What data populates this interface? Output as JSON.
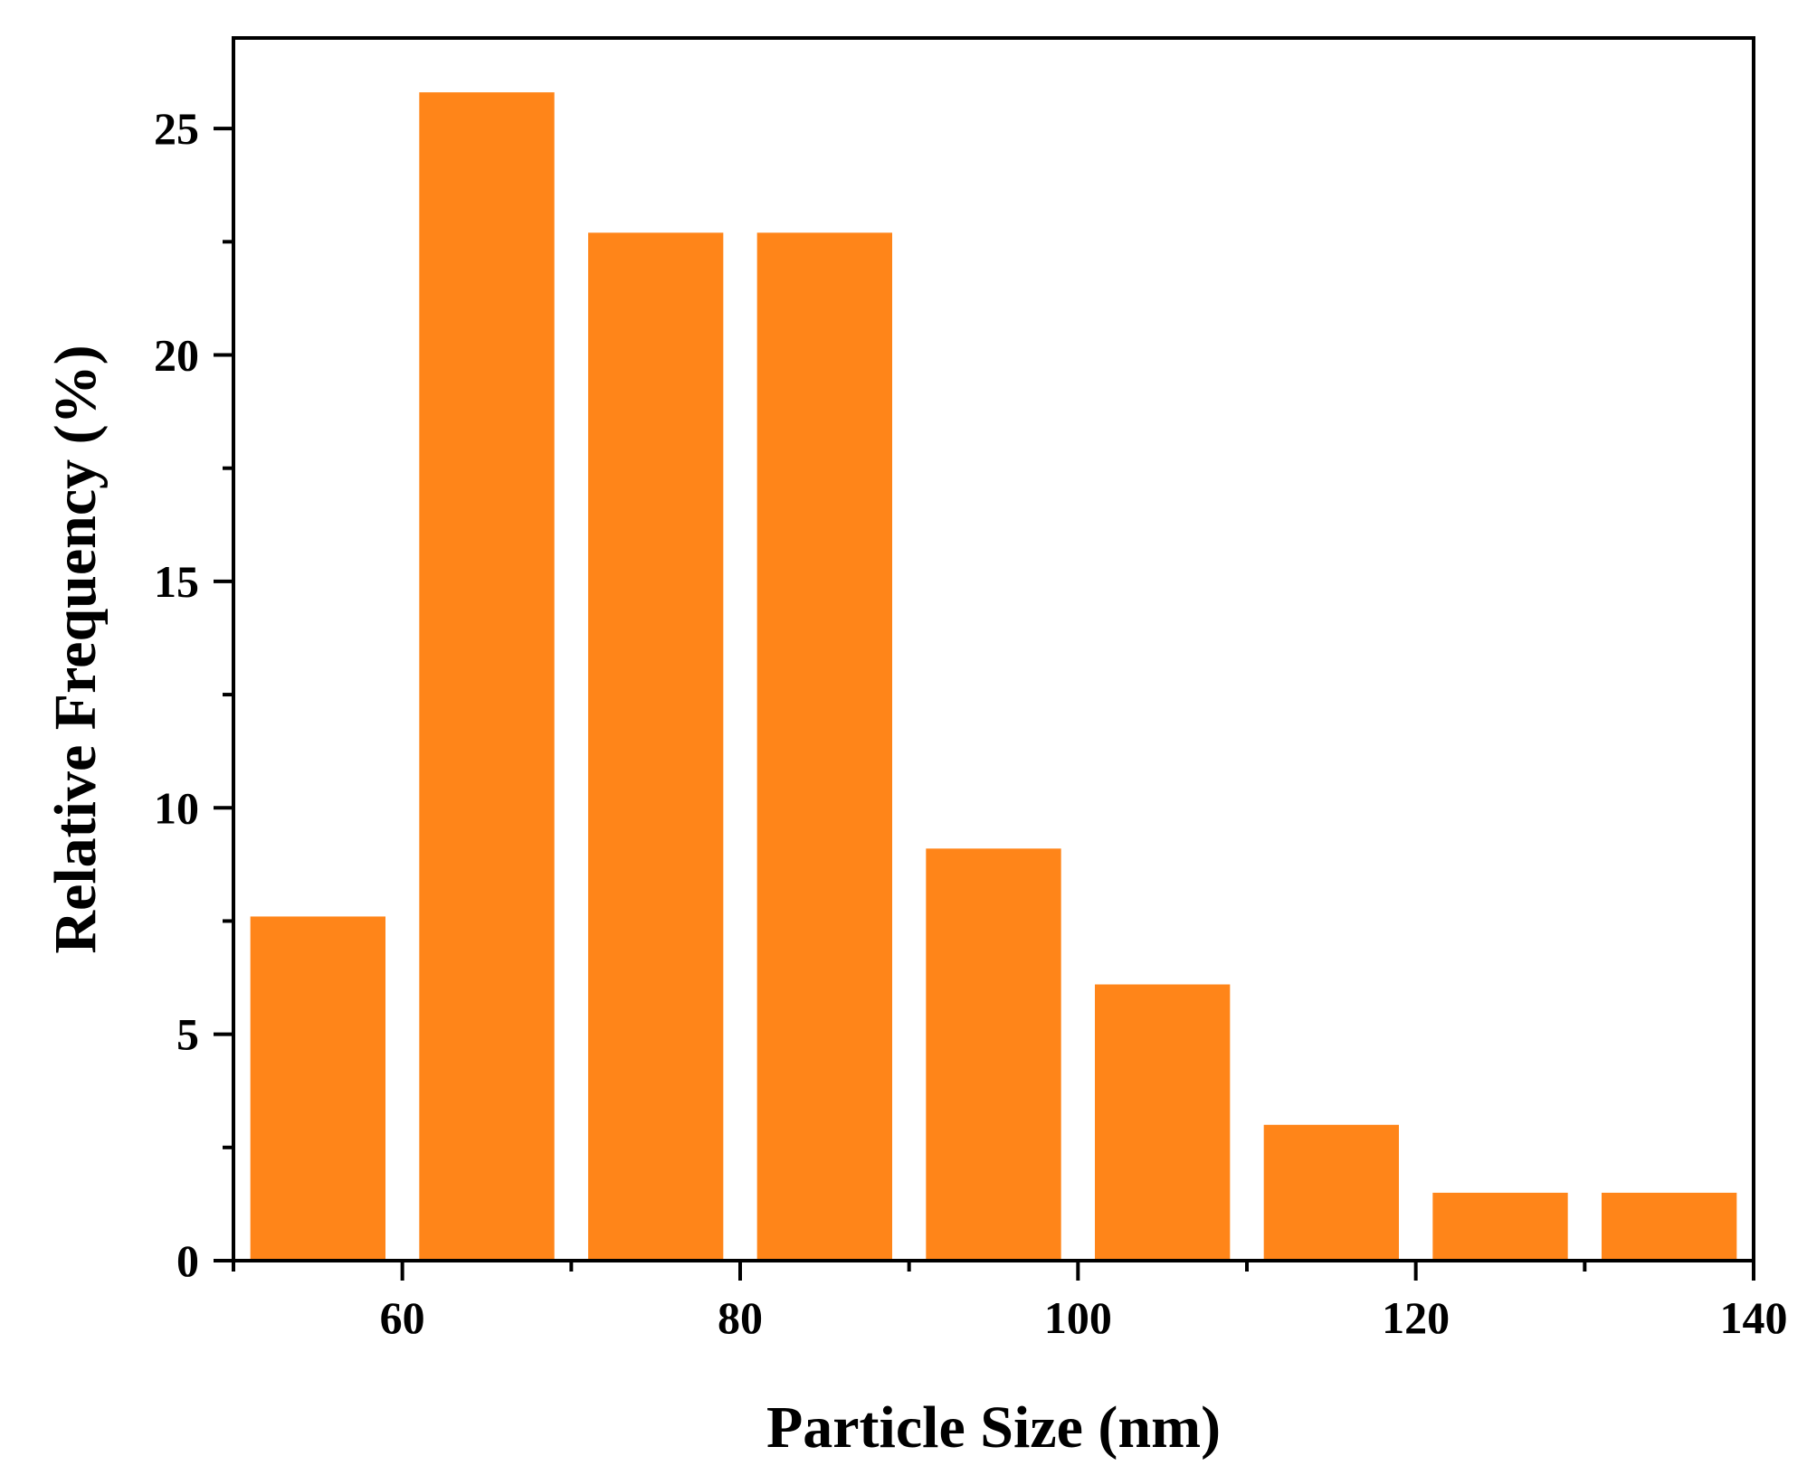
{
  "chart_data": {
    "type": "bar",
    "xlabel": "Particle Size (nm)",
    "ylabel": "Relative Frequency (%)",
    "xlim": [
      50,
      140
    ],
    "ylim": [
      0,
      27
    ],
    "x_major_ticks": [
      60,
      80,
      100,
      120,
      140
    ],
    "x_minor_ticks": [
      50,
      70,
      90,
      110,
      130
    ],
    "y_major_ticks": [
      0,
      5,
      10,
      15,
      20,
      25
    ],
    "y_minor_ticks": [
      2.5,
      7.5,
      12.5,
      17.5,
      22.5
    ],
    "bin_width": 10,
    "bar_fill_fraction": 0.8,
    "bins": [
      {
        "start": 51,
        "end": 59,
        "value": 7.6
      },
      {
        "start": 61,
        "end": 69,
        "value": 25.8
      },
      {
        "start": 71,
        "end": 79,
        "value": 22.7
      },
      {
        "start": 81,
        "end": 89,
        "value": 22.7
      },
      {
        "start": 91,
        "end": 99,
        "value": 9.1
      },
      {
        "start": 101,
        "end": 109,
        "value": 6.1
      },
      {
        "start": 111,
        "end": 119,
        "value": 3.0
      },
      {
        "start": 121,
        "end": 129,
        "value": 1.5
      },
      {
        "start": 131,
        "end": 139,
        "value": 1.5
      }
    ],
    "colors": {
      "bar": "#ff8519",
      "axis": "#000000",
      "background": "#ffffff"
    },
    "grid": false,
    "legend": "none"
  }
}
